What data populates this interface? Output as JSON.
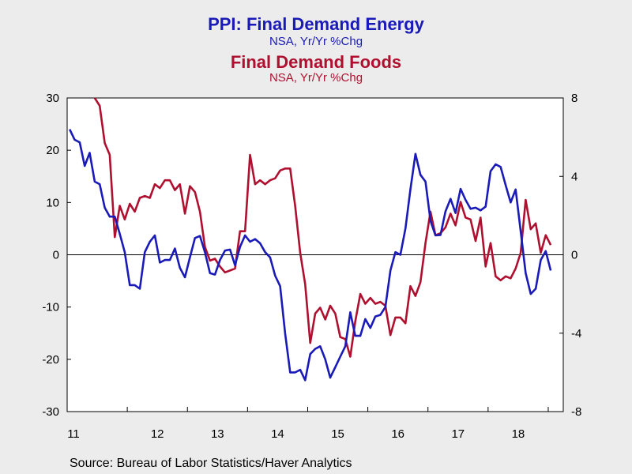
{
  "titles": {
    "series1_title": "PPI: Final Demand Energy",
    "series1_subtitle": "NSA, Yr/Yr %Chg",
    "series2_title": "Final Demand Foods",
    "series2_subtitle": "NSA, Yr/Yr %Chg"
  },
  "source": "Source:  Bureau of Labor Statistics/Haver Analytics",
  "colors": {
    "energy": "#1a1ab8",
    "foods": "#b01030",
    "background": "#ececec",
    "plot": "#ffffff"
  },
  "chart_data": {
    "type": "line",
    "x_start_year": 2011,
    "x_tick_labels": [
      "11",
      "12",
      "13",
      "14",
      "15",
      "16",
      "17",
      "18"
    ],
    "left_axis": {
      "ylim": [
        -30,
        30
      ],
      "ticks": [
        "30",
        "20",
        "10",
        "0",
        "-10",
        "-20",
        "-30"
      ]
    },
    "right_axis": {
      "ylim": [
        -8,
        8
      ],
      "ticks": [
        "8",
        "4",
        "0",
        "-4",
        "-8"
      ]
    },
    "zero_line": true,
    "series": [
      {
        "name": "PPI: Final Demand Energy",
        "axis": "left",
        "values": [
          24,
          22,
          21.5,
          17,
          19.5,
          14,
          13.5,
          9,
          7.3,
          7.3,
          4,
          0.5,
          -5.8,
          -5.8,
          -6.5,
          0.5,
          2.5,
          3.7,
          -1.5,
          -1,
          -1,
          1.2,
          -2.5,
          -4.3,
          -0.5,
          3.2,
          3.6,
          0.5,
          -3.5,
          -3.8,
          -1,
          0.8,
          1,
          -2,
          1.5,
          3.7,
          2.5,
          3,
          2.2,
          0.5,
          -0.5,
          -4,
          -6,
          -15,
          -22.5,
          -22.5,
          -22,
          -24,
          -19,
          -18,
          -17.5,
          -20,
          -23.5,
          -21.5,
          -19.5,
          -17.5,
          -11,
          -15.5,
          -15.5,
          -12.3,
          -14,
          -11.8,
          -11.5,
          -10,
          -3,
          0.5,
          0,
          5,
          12.5,
          19.3,
          15.3,
          14,
          6.5,
          3.7,
          3.8,
          8.3,
          10.7,
          8,
          12.6,
          10.5,
          8.8,
          9,
          8.5,
          9.2,
          16,
          17.3,
          16.8,
          13.3,
          10,
          12.5,
          4.5,
          -3.5,
          -7.5,
          -6.5,
          -1,
          0.7,
          -3
        ]
      },
      {
        "name": "Final Demand Foods",
        "axis": "right",
        "values": [
          null,
          null,
          null,
          null,
          null,
          8,
          7.6,
          5.7,
          5.1,
          0.9,
          2.5,
          1.8,
          2.6,
          2.2,
          2.9,
          3,
          2.9,
          3.6,
          3.4,
          3.8,
          3.8,
          3.3,
          3.6,
          2.1,
          3.5,
          3.2,
          2.2,
          0.4,
          -0.3,
          -0.2,
          -0.6,
          -0.9,
          -0.8,
          -0.7,
          1.2,
          1.2,
          5.1,
          3.6,
          3.8,
          3.6,
          3.8,
          3.9,
          4.3,
          4.4,
          4.4,
          2.5,
          0.1,
          -1.5,
          -4.5,
          -3,
          -2.7,
          -3.3,
          -2.6,
          -3,
          -4.2,
          -4.3,
          -5.2,
          -3.4,
          -2,
          -2.5,
          -2.2,
          -2.5,
          -2.4,
          -2.6,
          -4.1,
          -3.2,
          -3.2,
          -3.5,
          -1.6,
          -2.1,
          -1.4,
          0.6,
          2.2,
          1,
          1.1,
          1.4,
          2.1,
          1.5,
          2.7,
          1.9,
          1.8,
          0.7,
          1.9,
          -0.6,
          0.6,
          -1.1,
          -1.3,
          -1.1,
          -1.2,
          -0.7,
          0.1,
          2.8,
          1.3,
          1.6,
          0.1,
          1,
          0.5
        ]
      }
    ]
  }
}
